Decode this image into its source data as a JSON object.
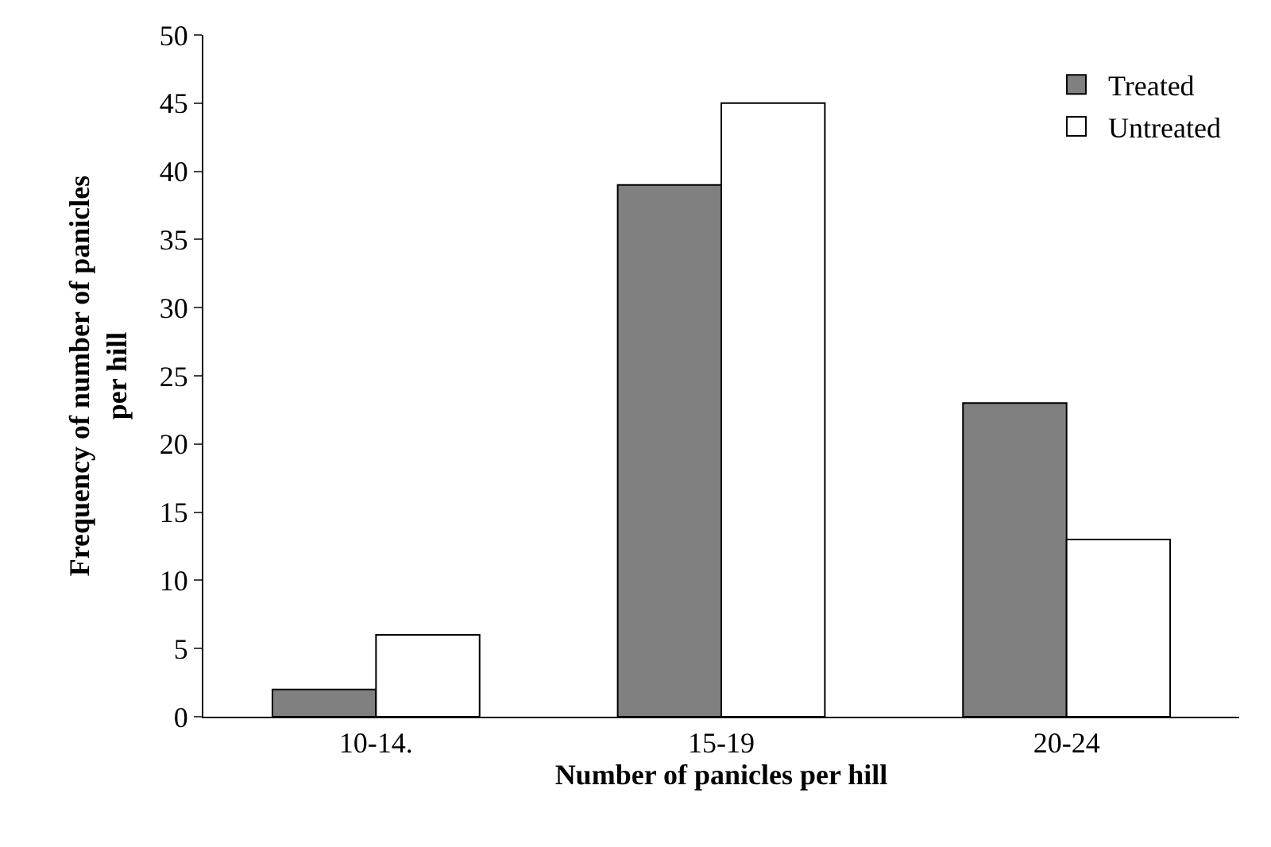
{
  "chart_data": {
    "type": "bar",
    "xlabel": "Number of panicles per hill",
    "ylabel": "Frequency of number of panicles per hill",
    "categories": [
      "10-14.",
      "15-19",
      "20-24"
    ],
    "series": [
      {
        "name": "Treated",
        "color": "#808080",
        "values": [
          2,
          39,
          23
        ]
      },
      {
        "name": "Untreated",
        "color": "#ffffff",
        "values": [
          6,
          45,
          13
        ]
      }
    ],
    "ylim": [
      0,
      50
    ],
    "yticks": [
      0,
      5,
      10,
      15,
      20,
      25,
      30,
      35,
      40,
      45,
      50
    ],
    "legend": "top right"
  }
}
